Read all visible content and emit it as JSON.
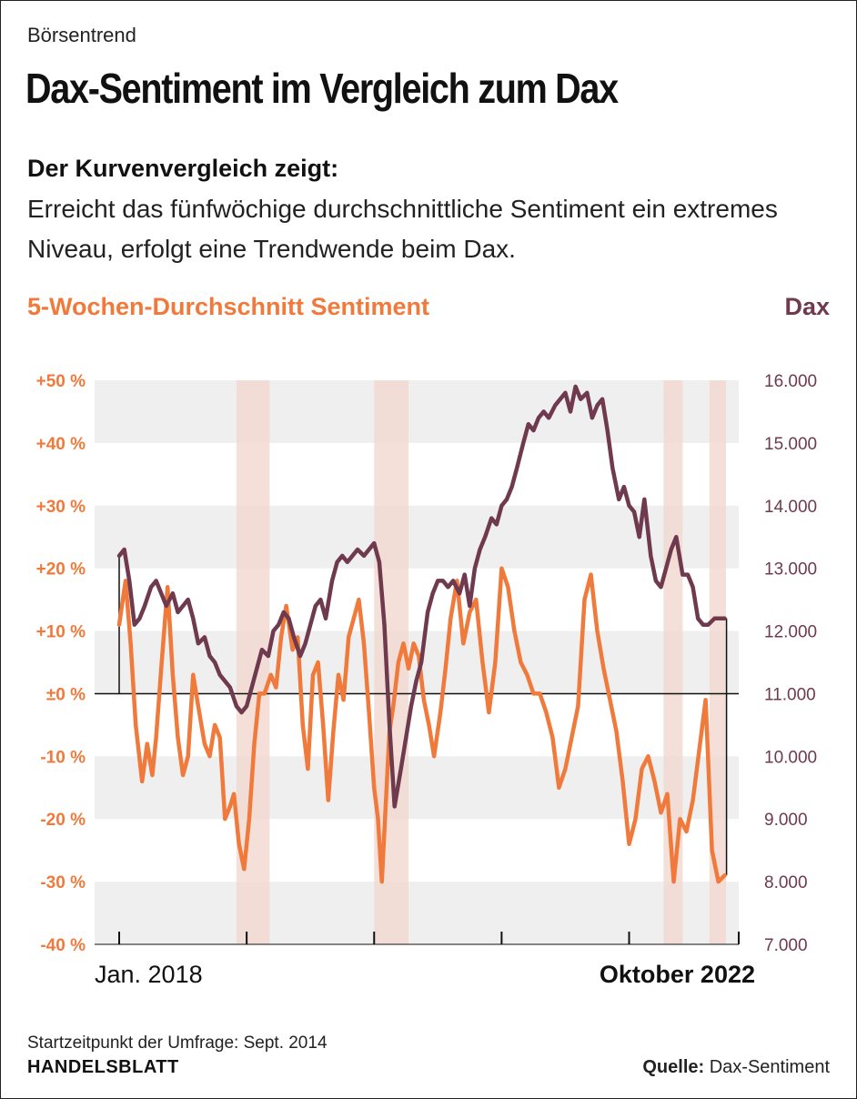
{
  "header": {
    "kicker": "Börsentrend",
    "title": "Dax-Sentiment im Vergleich zum Dax",
    "lead_bold": "Der Kurvenvergleich zeigt:",
    "lead_text": "Erreicht das fünfwöchige durchschnittliche Sentiment ein extremes Niveau, erfolgt eine Trendwende beim Dax."
  },
  "footer": {
    "note": "Startzeitpunkt der Umfrage: Sept. 2014",
    "brand": "HANDELSBLATT",
    "source_label": "Quelle:",
    "source_value": "Dax-Sentiment"
  },
  "colors": {
    "sentiment": "#ef7a3b",
    "dax": "#6f3a4e",
    "band": "#efefef",
    "highlight": "#f3d8cf"
  },
  "chart_data": {
    "type": "line",
    "x_start_label": "Jan. 2018",
    "x_end_label": "Oktober 2022",
    "x_range": [
      "2018-01",
      "2022-10"
    ],
    "x_tick_years": [
      2018,
      2019,
      2020,
      2021,
      2022
    ],
    "left_axis": {
      "title": "5-Wochen-Durchschnitt Sentiment",
      "ylim": [
        -40,
        50
      ],
      "ticks": [
        {
          "value": 50,
          "label": "+50 %"
        },
        {
          "value": 40,
          "label": "+40 %"
        },
        {
          "value": 30,
          "label": "+30 %"
        },
        {
          "value": 20,
          "label": "+20 %"
        },
        {
          "value": 10,
          "label": "+10 %"
        },
        {
          "value": 0,
          "label": "±0 %"
        },
        {
          "value": -10,
          "label": "-10 %"
        },
        {
          "value": -20,
          "label": "-20 %"
        },
        {
          "value": -30,
          "label": "-30 %"
        },
        {
          "value": -40,
          "label": "-40 %"
        }
      ]
    },
    "right_axis": {
      "title": "Dax",
      "ylim": [
        7000,
        16000
      ],
      "ticks": [
        {
          "value": 16000,
          "label": "16.000"
        },
        {
          "value": 15000,
          "label": "15.000"
        },
        {
          "value": 14000,
          "label": "14.000"
        },
        {
          "value": 13000,
          "label": "13.000"
        },
        {
          "value": 12000,
          "label": "12.000"
        },
        {
          "value": 11000,
          "label": "11.000"
        },
        {
          "value": 10000,
          "label": "10.000"
        },
        {
          "value": 9000,
          "label": "9.000"
        },
        {
          "value": 8000,
          "label": "8.000"
        },
        {
          "value": 7000,
          "label": "7.000"
        }
      ]
    },
    "highlight_periods": [
      [
        2018.92,
        2019.18
      ],
      [
        2020.0,
        2020.27
      ],
      [
        2022.27,
        2022.42
      ],
      [
        2022.63,
        2022.76
      ]
    ],
    "series": [
      {
        "name": "5-Wochen-Durchschnitt Sentiment",
        "axis": "left",
        "x": [
          2018.0,
          2018.05,
          2018.09,
          2018.13,
          2018.18,
          2018.22,
          2018.26,
          2018.29,
          2018.33,
          2018.38,
          2018.42,
          2018.46,
          2018.5,
          2018.54,
          2018.58,
          2018.62,
          2018.67,
          2018.71,
          2018.75,
          2018.79,
          2018.83,
          2018.87,
          2018.9,
          2018.94,
          2018.98,
          2019.02,
          2019.06,
          2019.1,
          2019.14,
          2019.19,
          2019.23,
          2019.27,
          2019.31,
          2019.36,
          2019.4,
          2019.44,
          2019.48,
          2019.52,
          2019.56,
          2019.6,
          2019.64,
          2019.68,
          2019.72,
          2019.76,
          2019.8,
          2019.84,
          2019.88,
          2019.92,
          2019.96,
          2020.0,
          2020.03,
          2020.06,
          2020.09,
          2020.12,
          2020.15,
          2020.19,
          2020.23,
          2020.27,
          2020.31,
          2020.35,
          2020.39,
          2020.43,
          2020.47,
          2020.52,
          2020.56,
          2020.6,
          2020.65,
          2020.7,
          2020.75,
          2020.8,
          2020.85,
          2020.9,
          2020.95,
          2021.0,
          2021.05,
          2021.1,
          2021.15,
          2021.2,
          2021.25,
          2021.3,
          2021.35,
          2021.4,
          2021.45,
          2021.5,
          2021.55,
          2021.6,
          2021.65,
          2021.7,
          2021.75,
          2021.8,
          2021.85,
          2021.9,
          2021.95,
          2022.0,
          2022.05,
          2022.1,
          2022.15,
          2022.2,
          2022.25,
          2022.3,
          2022.35,
          2022.4,
          2022.45,
          2022.5,
          2022.55,
          2022.6,
          2022.65,
          2022.7,
          2022.75
        ],
        "values": [
          11,
          18,
          8,
          -5,
          -14,
          -8,
          -13,
          -7,
          4,
          17,
          3,
          -7,
          -13,
          -10,
          3,
          -2,
          -8,
          -10,
          -5,
          -7,
          -20,
          -18,
          -16,
          -24,
          -28,
          -20,
          -8,
          0,
          0,
          3,
          1,
          9,
          14,
          7,
          9,
          -5,
          -12,
          3,
          5,
          -5,
          -17,
          -6,
          3,
          -1,
          9,
          12,
          15,
          8,
          -3,
          -15,
          -20,
          -30,
          -18,
          -6,
          -2,
          5,
          8,
          4,
          8,
          6,
          -1,
          -5,
          -10,
          -3,
          4,
          12,
          18,
          8,
          13,
          15,
          5,
          -3,
          5,
          20,
          17,
          10,
          5,
          3,
          0,
          0,
          -3,
          -7,
          -15,
          -12,
          -7,
          -2,
          15,
          19,
          10,
          4,
          -1,
          -6,
          -14,
          -24,
          -20,
          -12,
          -10,
          -14,
          -19,
          -16,
          -30,
          -20,
          -22,
          -17,
          -9,
          -1,
          -25,
          -30,
          -29
        ]
      },
      {
        "name": "Dax",
        "axis": "right",
        "x": [
          2018.0,
          2018.04,
          2018.08,
          2018.12,
          2018.16,
          2018.2,
          2018.25,
          2018.29,
          2018.33,
          2018.37,
          2018.42,
          2018.46,
          2018.5,
          2018.54,
          2018.58,
          2018.62,
          2018.67,
          2018.71,
          2018.75,
          2018.79,
          2018.83,
          2018.87,
          2018.92,
          2018.96,
          2019.0,
          2019.04,
          2019.08,
          2019.12,
          2019.17,
          2019.21,
          2019.25,
          2019.29,
          2019.33,
          2019.37,
          2019.42,
          2019.46,
          2019.5,
          2019.54,
          2019.58,
          2019.62,
          2019.67,
          2019.71,
          2019.75,
          2019.79,
          2019.83,
          2019.87,
          2019.92,
          2019.96,
          2020.0,
          2020.04,
          2020.08,
          2020.12,
          2020.16,
          2020.21,
          2020.25,
          2020.29,
          2020.33,
          2020.37,
          2020.42,
          2020.46,
          2020.5,
          2020.54,
          2020.58,
          2020.62,
          2020.67,
          2020.71,
          2020.75,
          2020.79,
          2020.83,
          2020.87,
          2020.92,
          2020.96,
          2021.0,
          2021.04,
          2021.08,
          2021.12,
          2021.17,
          2021.21,
          2021.25,
          2021.29,
          2021.33,
          2021.37,
          2021.42,
          2021.46,
          2021.5,
          2021.54,
          2021.58,
          2021.62,
          2021.67,
          2021.71,
          2021.75,
          2021.79,
          2021.83,
          2021.87,
          2021.92,
          2021.96,
          2022.0,
          2022.04,
          2022.08,
          2022.12,
          2022.17,
          2022.21,
          2022.25,
          2022.29,
          2022.33,
          2022.37,
          2022.42,
          2022.46,
          2022.5,
          2022.54,
          2022.58,
          2022.62,
          2022.67,
          2022.71,
          2022.75
        ],
        "values": [
          13200,
          13300,
          12800,
          12100,
          12200,
          12400,
          12700,
          12800,
          12600,
          12400,
          12600,
          12300,
          12400,
          12500,
          12200,
          11800,
          11900,
          11600,
          11500,
          11300,
          11200,
          11100,
          10800,
          10700,
          10800,
          11100,
          11400,
          11700,
          11600,
          12000,
          12100,
          12300,
          12200,
          11900,
          11600,
          11800,
          12100,
          12400,
          12500,
          12200,
          12800,
          13100,
          13200,
          13100,
          13200,
          13300,
          13200,
          13300,
          13400,
          13100,
          12100,
          10500,
          9200,
          9800,
          10300,
          10800,
          11200,
          11500,
          12300,
          12600,
          12800,
          12800,
          12700,
          12800,
          12600,
          12900,
          12400,
          13000,
          13300,
          13500,
          13800,
          13700,
          14000,
          14100,
          14300,
          14600,
          15000,
          15300,
          15200,
          15400,
          15500,
          15400,
          15600,
          15700,
          15800,
          15500,
          15900,
          15700,
          15800,
          15400,
          15600,
          15700,
          15200,
          14600,
          14100,
          14300,
          14000,
          13900,
          13500,
          14100,
          13200,
          12800,
          12700,
          13000,
          13300,
          13500,
          12900,
          12900,
          12700,
          12200,
          12100,
          12100,
          12200,
          12200,
          12200
        ]
      }
    ]
  }
}
